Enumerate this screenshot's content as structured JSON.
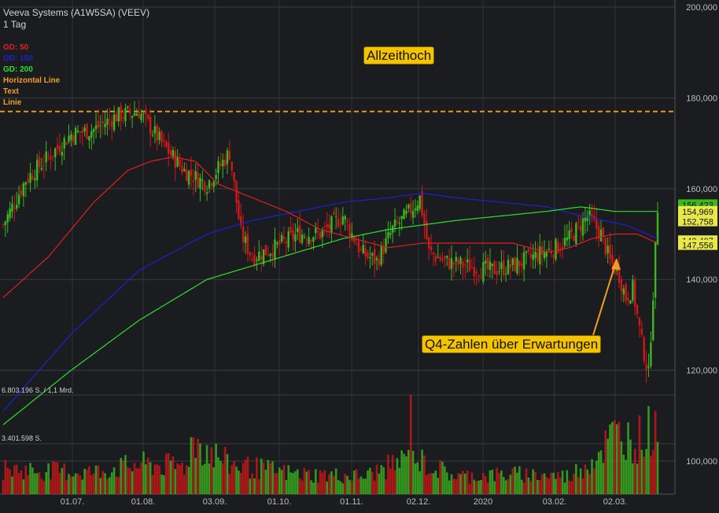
{
  "header": {
    "title": "Veeva Systems (A1W5SA) (VEEV)",
    "interval": "1 Tag"
  },
  "legend": [
    {
      "label": "GD: 50",
      "color": "#e02020"
    },
    {
      "label": "GD: 150",
      "color": "#2020d0"
    },
    {
      "label": "GD: 200",
      "color": "#2ee02e"
    },
    {
      "label": "Horizontal Line",
      "color": "#f0a020"
    },
    {
      "label": "Text",
      "color": "#f0a020"
    },
    {
      "label": "Linie",
      "color": "#f0a020"
    }
  ],
  "annotations": {
    "ath": "Allzeithoch",
    "q4": "Q4-Zahlen über Erwartungen"
  },
  "volume_labels": {
    "top": "6.803.196 S. / 1,1 Mrd.",
    "mid": "3.401.598 S."
  },
  "colors": {
    "up": "#3cb81e",
    "down": "#d01818",
    "ma50": "#e02020",
    "ma150": "#2020d0",
    "ma200": "#2ee02e",
    "hline": "#f0a020",
    "annotation_bg": "#f5c400"
  },
  "chart_data": {
    "type": "candlestick",
    "price_axis": {
      "ticks": [
        "200,000",
        "180,000",
        "160,000",
        "140,000",
        "120,000",
        "100,000"
      ],
      "range": [
        100,
        200
      ]
    },
    "x_labels": [
      "01.07.",
      "01.08.",
      "03.09.",
      "01.10.",
      "01.11.",
      "02.12.",
      "2020",
      "03.02.",
      "02.03."
    ],
    "price_tags": [
      {
        "label": "156,423",
        "value": 156.423,
        "color": "#3cb81e"
      },
      {
        "label": "154,969",
        "value": 154.969,
        "color": "#e8e84a"
      },
      {
        "label": "152,758",
        "value": 152.758,
        "color": "#e8e84a"
      },
      {
        "label": "148,497",
        "value": 148.497,
        "color": "#e8e84a"
      },
      {
        "label": "147,556",
        "value": 147.556,
        "color": "#e8e84a"
      }
    ],
    "horizontal_line": 177,
    "close_anchors": [
      [
        0,
        152
      ],
      [
        10,
        162
      ],
      [
        20,
        167
      ],
      [
        30,
        172
      ],
      [
        40,
        173
      ],
      [
        50,
        176
      ],
      [
        60,
        177
      ],
      [
        70,
        170
      ],
      [
        80,
        164
      ],
      [
        90,
        161
      ],
      [
        100,
        168
      ],
      [
        105,
        150
      ],
      [
        110,
        145
      ],
      [
        120,
        147
      ],
      [
        130,
        150
      ],
      [
        140,
        150
      ],
      [
        150,
        154
      ],
      [
        158,
        146
      ],
      [
        165,
        144
      ],
      [
        172,
        151
      ],
      [
        178,
        154
      ],
      [
        184,
        158
      ],
      [
        188,
        146
      ],
      [
        195,
        144
      ],
      [
        205,
        143
      ],
      [
        215,
        142
      ],
      [
        225,
        143
      ],
      [
        234,
        145
      ],
      [
        244,
        147
      ],
      [
        250,
        149
      ],
      [
        258,
        154
      ],
      [
        264,
        150
      ],
      [
        268,
        144
      ],
      [
        272,
        141
      ],
      [
        275,
        136
      ],
      [
        278,
        138
      ],
      [
        282,
        126
      ],
      [
        285,
        119
      ],
      [
        287,
        137
      ],
      [
        289,
        156
      ]
    ],
    "ma50_anchors": [
      [
        0,
        136
      ],
      [
        20,
        145
      ],
      [
        40,
        157
      ],
      [
        55,
        164
      ],
      [
        65,
        166
      ],
      [
        75,
        167
      ],
      [
        85,
        166
      ],
      [
        95,
        161
      ],
      [
        110,
        158
      ],
      [
        125,
        155
      ],
      [
        140,
        151
      ],
      [
        155,
        149
      ],
      [
        170,
        147
      ],
      [
        185,
        148
      ],
      [
        200,
        148
      ],
      [
        215,
        148
      ],
      [
        225,
        148
      ],
      [
        240,
        146
      ],
      [
        250,
        147
      ],
      [
        260,
        149
      ],
      [
        270,
        150
      ],
      [
        280,
        150
      ],
      [
        289,
        148
      ]
    ],
    "ma150_anchors": [
      [
        0,
        111
      ],
      [
        30,
        128
      ],
      [
        60,
        142
      ],
      [
        90,
        150
      ],
      [
        110,
        153
      ],
      [
        130,
        155
      ],
      [
        150,
        157
      ],
      [
        170,
        158
      ],
      [
        185,
        159
      ],
      [
        200,
        158
      ],
      [
        220,
        157
      ],
      [
        240,
        156
      ],
      [
        255,
        154
      ],
      [
        265,
        153
      ],
      [
        275,
        152
      ],
      [
        289,
        149
      ]
    ],
    "ma200_anchors": [
      [
        0,
        108
      ],
      [
        30,
        120
      ],
      [
        60,
        131
      ],
      [
        90,
        140
      ],
      [
        110,
        143
      ],
      [
        130,
        146
      ],
      [
        150,
        149
      ],
      [
        170,
        151
      ],
      [
        185,
        152
      ],
      [
        200,
        153
      ],
      [
        220,
        154
      ],
      [
        240,
        155
      ],
      [
        255,
        156
      ],
      [
        270,
        155
      ],
      [
        289,
        155
      ]
    ],
    "volume_shape": [
      [
        0,
        0.25
      ],
      [
        40,
        0.22
      ],
      [
        60,
        0.3
      ],
      [
        80,
        0.28
      ],
      [
        84,
        0.55
      ],
      [
        90,
        0.45
      ],
      [
        100,
        0.3
      ],
      [
        130,
        0.2
      ],
      [
        160,
        0.18
      ],
      [
        178,
        0.35
      ],
      [
        180,
        1.0
      ],
      [
        182,
        0.35
      ],
      [
        200,
        0.18
      ],
      [
        230,
        0.2
      ],
      [
        250,
        0.18
      ],
      [
        260,
        0.35
      ],
      [
        270,
        0.6
      ],
      [
        280,
        0.55
      ],
      [
        289,
        0.7
      ]
    ]
  }
}
